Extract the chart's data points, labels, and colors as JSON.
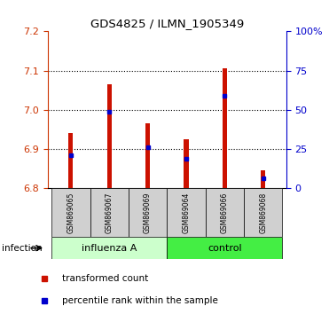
{
  "title": "GDS4825 / ILMN_1905349",
  "samples": [
    "GSM869065",
    "GSM869067",
    "GSM869069",
    "GSM869064",
    "GSM869066",
    "GSM869068"
  ],
  "group_labels": [
    "influenza A",
    "control"
  ],
  "group_colors": [
    "#ccffcc",
    "#44ee44"
  ],
  "bar_bottom": 6.8,
  "red_tops": [
    6.94,
    7.065,
    6.965,
    6.925,
    7.105,
    6.845
  ],
  "blue_values": [
    6.885,
    6.995,
    6.905,
    6.875,
    7.035,
    6.825
  ],
  "ylim_left": [
    6.8,
    7.2
  ],
  "yticks_left": [
    6.8,
    6.9,
    7.0,
    7.1,
    7.2
  ],
  "ylim_right": [
    0,
    100
  ],
  "yticks_right": [
    0,
    25,
    50,
    75,
    100
  ],
  "ytick_labels_right": [
    "0",
    "25",
    "50",
    "75",
    "100%"
  ],
  "left_tick_color": "#cc3300",
  "right_tick_color": "#0000cc",
  "bar_color": "#cc1100",
  "dot_color": "#0000cc",
  "infection_label": "infection",
  "legend_red": "transformed count",
  "legend_blue": "percentile rank within the sample"
}
